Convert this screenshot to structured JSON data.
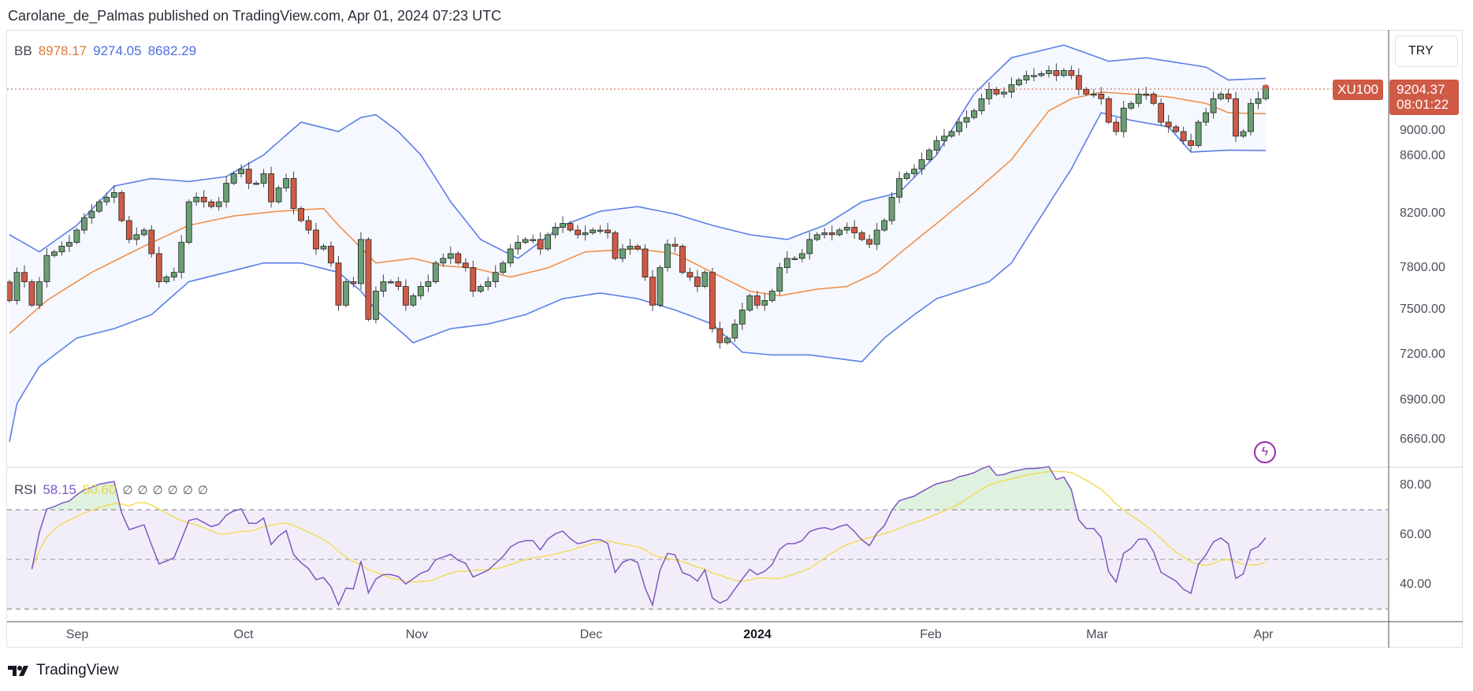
{
  "header": {
    "published": "Carolane_de_Palmas published on TradingView.com, Apr 01, 2024 07:23 UTC"
  },
  "legend": {
    "bb_label": "BB",
    "bb_basis": "8978.17",
    "bb_upper": "9274.05",
    "bb_lower": "8682.29",
    "rsi_label": "RSI",
    "rsi_value": "58.15",
    "rsi_ma": "50.60",
    "empty_values": [
      "∅",
      "∅",
      "∅",
      "∅",
      "∅",
      "∅"
    ]
  },
  "currency": "TRY",
  "symbol_tag": "XU100",
  "last_price": "9204.37",
  "countdown": "08:01:22",
  "footer": {
    "brand": "TradingView"
  },
  "colors": {
    "up": "#6a9f73",
    "down": "#cf5a45",
    "bb_band": "#5b7fe6",
    "bb_basis": "#f0904a",
    "rsi": "#7e57c2",
    "rsi_ma": "#f2dc5d",
    "last_price": "#cf5a45"
  },
  "chart_data": {
    "type": "candlestick",
    "price_axis": {
      "scale": "log",
      "ticks": [
        "9000.00",
        "8600.00",
        "8200.00",
        "7800.00",
        "7500.00",
        "7200.00",
        "6900.00",
        "6660.00"
      ]
    },
    "rsi_axis": {
      "ticks": [
        "80.00",
        "60.00",
        "40.00"
      ],
      "bands": [
        70,
        50,
        30
      ]
    },
    "time_axis": {
      "labels": [
        "Sep",
        "Oct",
        "Nov",
        "Dec",
        "2024",
        "Feb",
        "Mar",
        "Apr"
      ]
    },
    "first_open": 7700,
    "closes": [
      7571,
      7768,
      7702,
      7539,
      7702,
      7889,
      7915,
      7956,
      7984,
      8074,
      8165,
      8214,
      8285,
      8320,
      8355,
      8144,
      8005,
      8040,
      8074,
      7902,
      7702,
      7735,
      7768,
      7984,
      8285,
      8320,
      8285,
      8249,
      8285,
      8427,
      8500,
      8536,
      8427,
      8427,
      8500,
      8285,
      8391,
      8463,
      8235,
      8144,
      8074,
      7936,
      7956,
      7835,
      7539,
      7702,
      7689,
      8005,
      7442,
      7636,
      7702,
      7702,
      7669,
      7539,
      7604,
      7669,
      7702,
      7835,
      7868,
      7902,
      7835,
      7802,
      7636,
      7669,
      7702,
      7768,
      7835,
      7936,
      7984,
      8005,
      8005,
      7936,
      8040,
      8095,
      8123,
      8074,
      8040,
      8054,
      8074,
      8074,
      8054,
      7868,
      7936,
      7956,
      7936,
      7735,
      7539,
      7802,
      7970,
      7956,
      7768,
      7735,
      7669,
      7768,
      7379,
      7285,
      7316,
      7410,
      7506,
      7604,
      7539,
      7571,
      7636,
      7802,
      7868,
      7868,
      7902,
      8005,
      8040,
      8054,
      8040,
      8074,
      8095,
      8054,
      8005,
      7970,
      8074,
      8144,
      8320,
      8463,
      8500,
      8536,
      8610,
      8685,
      8760,
      8797,
      8834,
      8910,
      8948,
      9003,
      9103,
      9181,
      9142,
      9158,
      9220,
      9260,
      9298,
      9298,
      9314,
      9340,
      9298,
      9340,
      9298,
      9181,
      9142,
      9142,
      9103,
      8910,
      8834,
      9025,
      9064,
      9142,
      9142,
      9064,
      8910,
      8872,
      8834,
      8760,
      8722,
      8910,
      8987,
      9103,
      9142,
      9103,
      8797,
      8834,
      9064,
      9103,
      9204.37
    ],
    "bb_upper": [
      [
        0,
        8040
      ],
      [
        4,
        7915
      ],
      [
        9,
        8109
      ],
      [
        14,
        8405
      ],
      [
        19,
        8463
      ],
      [
        24,
        8440
      ],
      [
        29,
        8478
      ],
      [
        34,
        8648
      ],
      [
        39,
        8910
      ],
      [
        44,
        8834
      ],
      [
        47,
        8948
      ],
      [
        49,
        8971
      ],
      [
        52,
        8834
      ],
      [
        55,
        8648
      ],
      [
        59,
        8285
      ],
      [
        63,
        8005
      ],
      [
        68,
        7868
      ],
      [
        74,
        8109
      ],
      [
        79,
        8214
      ],
      [
        84,
        8249
      ],
      [
        89,
        8193
      ],
      [
        94,
        8109
      ],
      [
        99,
        8040
      ],
      [
        104,
        8005
      ],
      [
        109,
        8109
      ],
      [
        114,
        8285
      ],
      [
        119,
        8355
      ],
      [
        124,
        8648
      ],
      [
        129,
        9142
      ],
      [
        134,
        9450
      ],
      [
        141,
        9560
      ],
      [
        147,
        9420
      ],
      [
        152,
        9450
      ],
      [
        160,
        9370
      ],
      [
        163,
        9260
      ],
      [
        168,
        9274.05
      ]
    ],
    "bb_lower": [
      [
        0,
        6655
      ],
      [
        1,
        6890
      ],
      [
        4,
        7128
      ],
      [
        9,
        7316
      ],
      [
        14,
        7379
      ],
      [
        19,
        7474
      ],
      [
        24,
        7702
      ],
      [
        29,
        7768
      ],
      [
        34,
        7835
      ],
      [
        39,
        7835
      ],
      [
        44,
        7768
      ],
      [
        47,
        7636
      ],
      [
        49,
        7506
      ],
      [
        54,
        7285
      ],
      [
        59,
        7379
      ],
      [
        64,
        7410
      ],
      [
        69,
        7474
      ],
      [
        74,
        7584
      ],
      [
        79,
        7623
      ],
      [
        84,
        7584
      ],
      [
        89,
        7506
      ],
      [
        94,
        7410
      ],
      [
        98,
        7222
      ],
      [
        102,
        7204
      ],
      [
        107,
        7204
      ],
      [
        114,
        7160
      ],
      [
        117,
        7316
      ],
      [
        121,
        7474
      ],
      [
        124,
        7584
      ],
      [
        131,
        7702
      ],
      [
        134,
        7835
      ],
      [
        138,
        8179
      ],
      [
        142,
        8536
      ],
      [
        146,
        8987
      ],
      [
        150,
        8925
      ],
      [
        155,
        8872
      ],
      [
        158,
        8670
      ],
      [
        163,
        8685
      ],
      [
        168,
        8682.29
      ]
    ],
    "bb_basis": [
      [
        0,
        7347
      ],
      [
        5,
        7571
      ],
      [
        11,
        7768
      ],
      [
        18,
        7956
      ],
      [
        24,
        8109
      ],
      [
        30,
        8179
      ],
      [
        36,
        8214
      ],
      [
        42,
        8235
      ],
      [
        44,
        8109
      ],
      [
        49,
        7835
      ],
      [
        54,
        7868
      ],
      [
        58,
        7815
      ],
      [
        62,
        7800
      ],
      [
        67,
        7735
      ],
      [
        72,
        7800
      ],
      [
        77,
        7915
      ],
      [
        84,
        7936
      ],
      [
        89,
        7902
      ],
      [
        94,
        7768
      ],
      [
        99,
        7636
      ],
      [
        103,
        7604
      ],
      [
        108,
        7650
      ],
      [
        112,
        7669
      ],
      [
        116,
        7768
      ],
      [
        119,
        7902
      ],
      [
        124,
        8123
      ],
      [
        129,
        8355
      ],
      [
        134,
        8610
      ],
      [
        139,
        9003
      ],
      [
        142,
        9103
      ],
      [
        146,
        9158
      ],
      [
        150,
        9142
      ],
      [
        155,
        9118
      ],
      [
        160,
        9064
      ],
      [
        163,
        8987
      ],
      [
        168,
        8978.17
      ]
    ]
  }
}
